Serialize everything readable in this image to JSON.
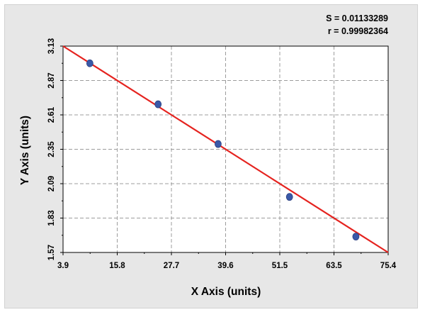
{
  "chart_data": {
    "type": "scatter",
    "title": "",
    "xlabel": "X Axis (units)",
    "ylabel": "Y Axis (units)",
    "xlim": [
      3.9,
      75.4
    ],
    "ylim": [
      1.57,
      3.13
    ],
    "x_ticks": [
      "3.9",
      "15.8",
      "27.7",
      "39.6",
      "51.5",
      "63.5",
      "75.4"
    ],
    "y_ticks": [
      "3.13",
      "2.87",
      "2.61",
      "2.35",
      "2.09",
      "1.83",
      "1.57"
    ],
    "grid": true,
    "annotations": {
      "s_text": "S = 0.01133289",
      "r_text": "r = 0.99982364"
    },
    "series": [
      {
        "type": "scatter",
        "x": [
          9.8,
          24.8,
          38.0,
          53.7,
          68.3
        ],
        "y": [
          3.0,
          2.69,
          2.39,
          1.99,
          1.69
        ]
      },
      {
        "type": "line",
        "x": [
          3.9,
          75.4
        ],
        "y": [
          3.13,
          1.57
        ]
      }
    ],
    "colors": {
      "points": "#3a59a8",
      "line": "#e5231f",
      "grid": "#9c9c9c"
    }
  }
}
